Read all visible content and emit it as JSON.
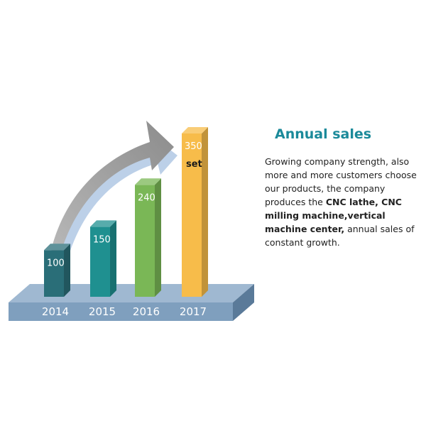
{
  "chart_data": {
    "type": "bar",
    "categories": [
      "2014",
      "2015",
      "2016",
      "2017"
    ],
    "values": [
      100,
      150,
      240,
      350
    ],
    "unit_label": "set",
    "colors": [
      "#2a6e78",
      "#1f9090",
      "#7ab756",
      "#f7bc4a"
    ],
    "ylim": [
      0,
      350
    ],
    "grid": false,
    "legend": "none"
  },
  "text": {
    "headline": "Annual sales",
    "description": [
      {
        "t": "Growing company strength, also more and more customers choose our products, the company produces the ",
        "b": false
      },
      {
        "t": "CNC lathe, CNC milling machine,vertical machine center,",
        "b": true
      },
      {
        "t": " annual sales of constant growth.",
        "b": false
      }
    ]
  },
  "colors": {
    "accent": "#1b8a9a",
    "platform": "#7f9fbe",
    "arrow": "#9a9a9a"
  },
  "icons": {
    "growth_arrow": "curved-arrow-icon"
  }
}
